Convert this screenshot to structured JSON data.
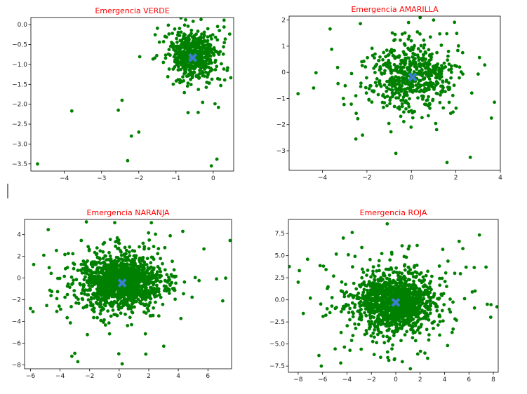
{
  "figure": {
    "title_color": "#ff0000",
    "point_color": "#008000",
    "centroid_color": "#3a7fd0",
    "centroid_marker": "X"
  },
  "chart_data": [
    {
      "type": "scatter",
      "title": "Emergencia VERDE",
      "xlim": [
        -4.9,
        0.55
      ],
      "ylim": [
        -3.68,
        0.18
      ],
      "xticks": [
        -4,
        -3,
        -2,
        -1,
        0
      ],
      "yticks": [
        0.0,
        -0.5,
        -1.0,
        -1.5,
        -2.0,
        -2.5,
        -3.0,
        -3.5
      ],
      "centroid": [
        -0.55,
        -0.83
      ],
      "cluster": {
        "center": [
          -0.55,
          -0.75
        ],
        "spread": [
          0.3,
          0.3
        ]
      },
      "point_count": 600,
      "outliers": [
        [
          -4.72,
          -3.5
        ],
        [
          -3.8,
          -2.17
        ],
        [
          -2.3,
          -3.42
        ],
        [
          -0.05,
          -3.55
        ],
        [
          0.1,
          -3.38
        ],
        [
          -2.55,
          -2.15
        ],
        [
          -2.2,
          -2.8
        ],
        [
          -2.45,
          -1.9
        ],
        [
          0.3,
          -0.45
        ],
        [
          -2.0,
          -2.7
        ]
      ],
      "xlabel": "",
      "ylabel": ""
    },
    {
      "type": "scatter",
      "title": "Emergencia AMARILLA",
      "xlim": [
        -5.5,
        4.0
      ],
      "ylim": [
        -3.75,
        2.15
      ],
      "xticks": [
        -4,
        -2,
        0,
        2,
        4
      ],
      "yticks": [
        2,
        1,
        0,
        -1,
        -2,
        -3
      ],
      "centroid": [
        0.05,
        -0.18
      ],
      "cluster": {
        "center": [
          0.0,
          -0.2
        ],
        "spread": [
          0.9,
          0.6
        ]
      },
      "point_count": 600,
      "outliers": [
        [
          -5.1,
          -0.82
        ],
        [
          -4.4,
          -0.6
        ],
        [
          3.6,
          -1.75
        ],
        [
          3.3,
          0.28
        ],
        [
          1.6,
          -3.45
        ],
        [
          2.65,
          -3.25
        ],
        [
          -2.5,
          -2.55
        ],
        [
          -2.2,
          -2.4
        ],
        [
          1.0,
          2.0
        ],
        [
          -0.7,
          -3.1
        ]
      ],
      "xlabel": "",
      "ylabel": ""
    },
    {
      "type": "scatter",
      "title": "Emergencia NARANJA",
      "xlim": [
        -6.4,
        7.6
      ],
      "ylim": [
        -8.35,
        5.4
      ],
      "xticks": [
        -6,
        -4,
        -2,
        0,
        2,
        4,
        6
      ],
      "yticks": [
        4,
        2,
        0,
        -2,
        -4,
        -6,
        -8
      ],
      "centroid": [
        0.2,
        -0.45
      ],
      "cluster": {
        "center": [
          0.2,
          -0.4
        ],
        "spread": [
          1.4,
          1.2
        ]
      },
      "point_count": 1400,
      "outliers": [
        [
          -6.0,
          -2.8
        ],
        [
          -5.1,
          2.1
        ],
        [
          7.2,
          0.0
        ],
        [
          -0.3,
          5.1
        ],
        [
          0.2,
          -7.9
        ],
        [
          -2.8,
          -7.7
        ],
        [
          4.3,
          4.3
        ],
        [
          7.0,
          -2.1
        ],
        [
          -3.2,
          -7.2
        ],
        [
          1.8,
          -7.0
        ]
      ],
      "xlabel": "",
      "ylabel": ""
    },
    {
      "type": "scatter",
      "title": "Emergencia ROJA",
      "xlim": [
        -8.8,
        8.4
      ],
      "ylim": [
        -8.2,
        9.1
      ],
      "xticks": [
        -8,
        -6,
        -4,
        -2,
        0,
        2,
        4,
        6,
        8
      ],
      "yticks": [
        7.5,
        5.0,
        2.5,
        0.0,
        -2.5,
        -5.0,
        -7.5
      ],
      "centroid": [
        0.0,
        -0.3
      ],
      "cluster": {
        "center": [
          0.0,
          -0.3
        ],
        "spread": [
          1.6,
          1.6
        ]
      },
      "point_count": 1400,
      "outliers": [
        [
          -8.0,
          2.0
        ],
        [
          -6.3,
          -6.3
        ],
        [
          -0.7,
          8.6
        ],
        [
          7.5,
          -0.5
        ],
        [
          7.4,
          3.7
        ],
        [
          -6.1,
          -7.5
        ],
        [
          -7.0,
          0.2
        ],
        [
          -4.3,
          7.0
        ],
        [
          1.2,
          -7.8
        ],
        [
          5.5,
          5.8
        ]
      ],
      "xlabel": "",
      "ylabel": ""
    }
  ]
}
